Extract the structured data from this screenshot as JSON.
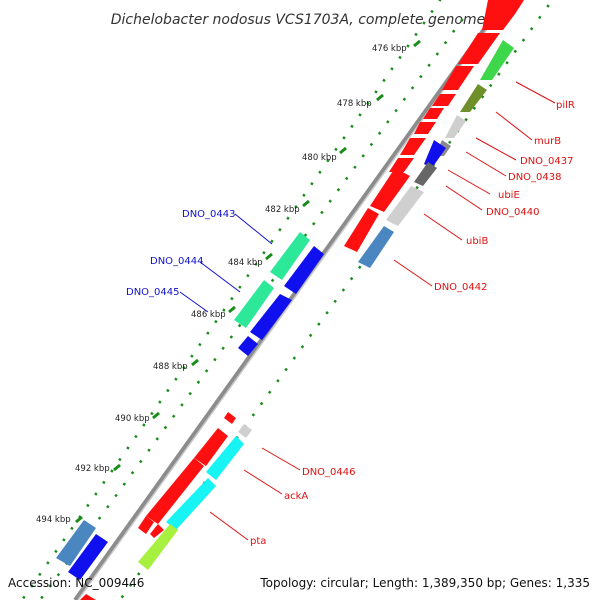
{
  "title": "Dichelobacter nodosus VCS1703A, complete genome",
  "footer": {
    "accession": "Accession: NC_009446",
    "topology": "Topology: circular; Length: 1,389,350 bp; Genes: 1,335"
  },
  "ticks": [
    "476 kbp",
    "478 kbp",
    "480 kbp",
    "482 kbp",
    "484 kbp",
    "486 kbp",
    "488 kbp",
    "490 kbp",
    "492 kbp",
    "494 kbp"
  ],
  "colors": {
    "backbone": "#8c8c8c",
    "forward_label": "#dd1111",
    "reverse_label": "#1111cc",
    "tick": "#1a8c1a",
    "red": "#ff1010",
    "green": "#3ed64a",
    "olive": "#6f8f2a",
    "lightgray": "#cfcfcf",
    "gray": "#8a8a8a",
    "darkgray": "#666666",
    "blue": "#1010ee",
    "steelblue": "#4a86c0",
    "springgreen": "#2ee89a",
    "cyan": "#18f4f4",
    "lime": "#a8f040"
  },
  "gene_labels": [
    {
      "name": "pilR",
      "strand": "forward"
    },
    {
      "name": "murB",
      "strand": "forward"
    },
    {
      "name": "DNO_0437",
      "strand": "forward"
    },
    {
      "name": "DNO_0438",
      "strand": "forward"
    },
    {
      "name": "ubiE",
      "strand": "forward"
    },
    {
      "name": "DNO_0440",
      "strand": "forward"
    },
    {
      "name": "ubiB",
      "strand": "forward"
    },
    {
      "name": "DNO_0442",
      "strand": "forward"
    },
    {
      "name": "DNO_0443",
      "strand": "reverse"
    },
    {
      "name": "DNO_0444",
      "strand": "reverse"
    },
    {
      "name": "DNO_0445",
      "strand": "reverse"
    },
    {
      "name": "DNO_0446",
      "strand": "forward"
    },
    {
      "name": "ackA",
      "strand": "forward"
    },
    {
      "name": "pta",
      "strand": "forward"
    }
  ]
}
